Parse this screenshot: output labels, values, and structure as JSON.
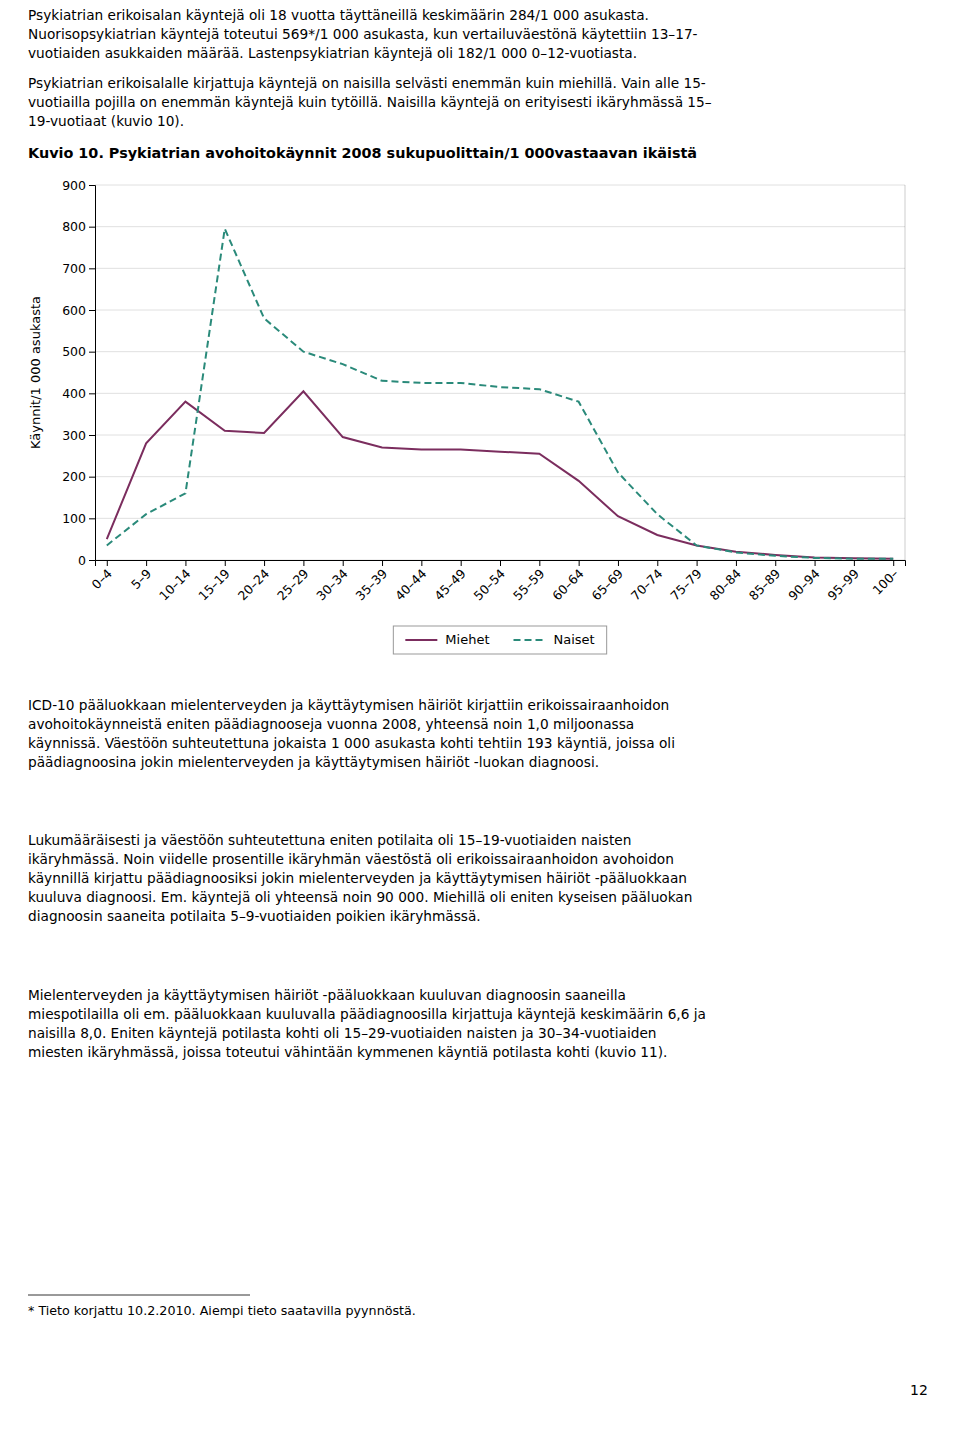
{
  "chart_data": {
    "type": "line",
    "title": "Kuvio 10. Psykiatrian avohoitokäynnit 2008 sukupuolittain/1 000vastaavan ikäistä",
    "y_label": "Käynnit/1 000 asukasta",
    "categories": [
      "0–4",
      "5–9",
      "10–14",
      "15–19",
      "20–24",
      "25–29",
      "30–34",
      "35–39",
      "40–44",
      "45–49",
      "50–54",
      "55–59",
      "60–64",
      "65–69",
      "70–74",
      "75–79",
      "80–84",
      "85–89",
      "90–94",
      "95–99",
      "100–"
    ],
    "series": [
      {
        "name": "Miehet",
        "color": "#7B2D5E",
        "line_style": "solid",
        "values": [
          50,
          280,
          380,
          310,
          305,
          405,
          295,
          270,
          265,
          265,
          260,
          255,
          190,
          105,
          60,
          35,
          20,
          12,
          6,
          4,
          3
        ]
      },
      {
        "name": "Naiset",
        "color": "#2A8A7A",
        "line_style": "dashed",
        "values": [
          35,
          110,
          160,
          795,
          580,
          500,
          470,
          430,
          425,
          425,
          415,
          410,
          380,
          210,
          110,
          35,
          18,
          10,
          5,
          3,
          3
        ]
      }
    ],
    "ylim": [
      0,
      900
    ],
    "yticks": [
      0,
      100,
      200,
      300,
      400,
      500,
      600,
      700,
      800,
      900
    ],
    "grid": true,
    "legend": "bottom"
  },
  "paragraphs": [
    [
      "Psykiatrian erikoisalan käyntejä oli 18 vuotta täyttäneillä keskimäärin 284/1 000 asukasta.",
      "Nuorisopsykiatrian käyntejä toteutui 569*/1 000 asukasta, kun vertailuväestönä käytettiin 13–17-",
      "vuotiaiden asukkaiden määrää. Lastenpsykiatrian käyntejä oli 182/1 000 0–12-vuotiasta."
    ],
    [
      "Psykiatrian erikoisalalle kirjattuja käyntejä on naisilla selvästi enemmän kuin miehillä. Vain alle 15-",
      "vuotiailla pojilla on enemmän käyntejä kuin tytöillä. Naisilla käyntejä on erityisesti ikäryhmässä 15–",
      "19-vuotiaat (kuvio 10)."
    ],
    [
      "ICD-10 pääluokkaan mielenterveyden ja käyttäytymisen häiriöt kirjattiin erikoissairaanhoidon",
      "avohoitokäynneistä eniten päädiagnooseja vuonna 2008, yhteensä noin 1,0 miljoonassa",
      "käynnissä. Väestöön suhteutettuna jokaista 1 000 asukasta kohti tehtiin 193 käyntiä, joissa oli",
      "päädiagnoosina jokin mielenterveyden ja käyttäytymisen häiriöt -luokan diagnoosi."
    ],
    [
      "Lukumääräisesti ja väestöön suhteutettuna eniten potilaita oli 15–19-vuotiaiden naisten",
      "ikäryhmässä. Noin viidelle prosentille ikäryhmän väestöstä oli erikoissairaanhoidon avohoidon",
      "käynnillä kirjattu päädiagnoosiksi jokin mielenterveyden ja käyttäytymisen häiriöt -pääluokkaan",
      "kuuluva diagnoosi. Em. käyntejä oli yhteensä noin 90 000. Miehillä oli eniten kyseisen pääluokan",
      "diagnoosin saaneita potilaita 5–9-vuotiaiden poikien ikäryhmässä."
    ],
    [
      "Mielenterveyden ja käyttäytymisen häiriöt -pääluokkaan kuuluvan diagnoosin saaneilla",
      "miespotilailla oli em. pääluokkaan kuuluvalla päädiagnoosilla kirjattuja käyntejä keskimäärin 6,6 ja",
      "naisilla 8,0. Eniten käyntejä potilasta kohti oli 15–29-vuotiaiden naisten ja 30–34-vuotiaiden",
      "miesten ikäryhmässä, joissa toteutui vähintään kymmenen käyntiä potilasta kohti (kuvio 11)."
    ]
  ],
  "footnote": "* Tieto korjattu 10.2.2010. Aiempi tieto saatavilla pyynnöstä.",
  "page_number": "12"
}
